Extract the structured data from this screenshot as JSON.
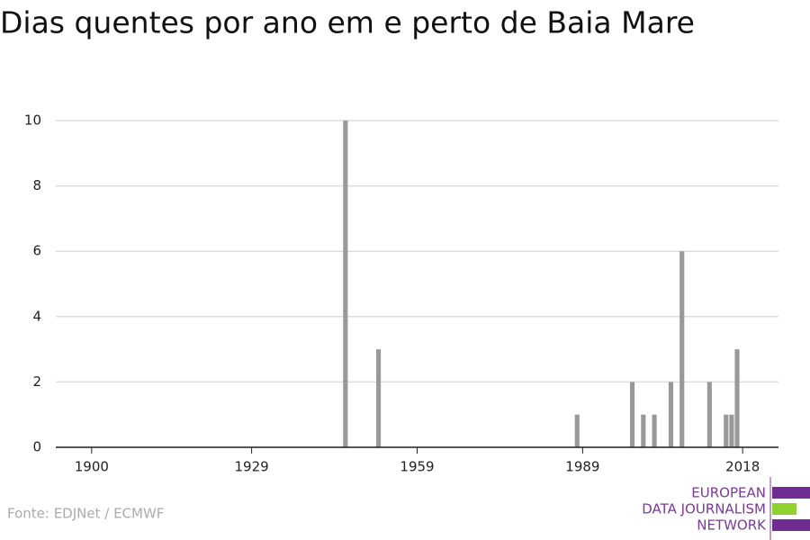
{
  "chart_data": {
    "type": "bar",
    "title": "Dias quentes por ano em e perto de Baia Mare",
    "x": [
      1946,
      1952,
      1988,
      1998,
      2000,
      2002,
      2005,
      2007,
      2012,
      2015,
      2016,
      2017
    ],
    "values": [
      10,
      3,
      1,
      2,
      1,
      1,
      2,
      6,
      2,
      1,
      1,
      3
    ],
    "color": "#999999",
    "xlim": [
      1893.5,
      2024.5
    ],
    "xticks": [
      1900,
      1929,
      1959,
      1989,
      2018
    ],
    "ylim": [
      0,
      10
    ],
    "yticks": [
      0,
      2,
      4,
      6,
      8,
      10
    ],
    "grid": true,
    "source": "Fonte: EDJNet / ECMWF"
  },
  "logo": {
    "lines": [
      "EUROPEAN",
      "DATA JOURNALISM",
      "NETWORK"
    ]
  }
}
